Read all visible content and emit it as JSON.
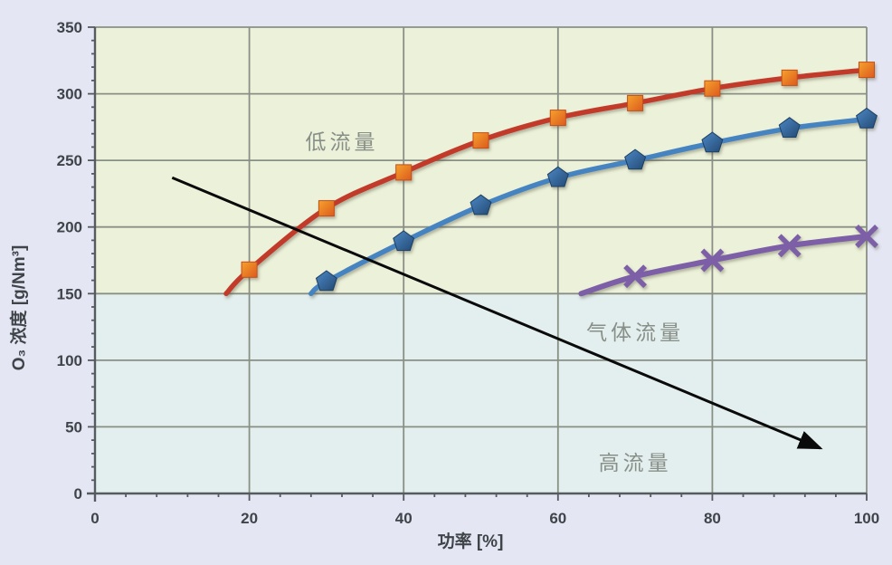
{
  "page": {
    "background_color": "#e4e7f3"
  },
  "chart_data": {
    "type": "line",
    "title": "",
    "xlabel": "功率 [%]",
    "ylabel": "O₃ 浓度 [g/Nm³]",
    "xlim": [
      0,
      100
    ],
    "ylim": [
      0,
      350
    ],
    "x_ticks": [
      0,
      20,
      40,
      60,
      80,
      100
    ],
    "y_ticks": [
      0,
      50,
      100,
      150,
      200,
      250,
      300,
      350
    ],
    "x_minor_step": 4,
    "y_minor_step": 10,
    "grid": true,
    "legend": "none",
    "colors": {
      "outer_background": "#e4e7f3",
      "gridline": "#8a8f85",
      "axis": "#555b5e",
      "tick_text": "#3f4449",
      "annotation_text": "#888f88",
      "arrow": "#0a0a0a"
    },
    "regions": [
      {
        "name": "low-flow-band",
        "y0": 150,
        "y1": 350,
        "color": "#ecf1d9"
      },
      {
        "name": "high-flow-band",
        "y0": 0,
        "y1": 150,
        "color": "#e3efee"
      }
    ],
    "series": [
      {
        "id": "red-squares",
        "marker": "square",
        "line_color": "#c23b2b",
        "line_width": 5.5,
        "marker_fill": [
          "#f6a22d",
          "#dc5a1e"
        ],
        "marker_stroke": "#c64e19",
        "marker_start_index": 1,
        "points": [
          [
            17,
            150
          ],
          [
            20,
            168
          ],
          [
            30,
            214
          ],
          [
            40,
            241
          ],
          [
            50,
            265
          ],
          [
            60,
            282
          ],
          [
            70,
            293
          ],
          [
            80,
            304
          ],
          [
            90,
            312
          ],
          [
            100,
            318
          ]
        ]
      },
      {
        "id": "blue-pentagons",
        "marker": "pentagon",
        "line_color": "#4583c1",
        "line_width": 5.5,
        "marker_fill": [
          "#4d88c6",
          "#234a74"
        ],
        "marker_stroke": "#1d3f63",
        "marker_start_index": 1,
        "points": [
          [
            28,
            150
          ],
          [
            30,
            159
          ],
          [
            40,
            189
          ],
          [
            50,
            216
          ],
          [
            60,
            237
          ],
          [
            70,
            250
          ],
          [
            80,
            263
          ],
          [
            90,
            274
          ],
          [
            100,
            281
          ]
        ]
      },
      {
        "id": "purple-x",
        "marker": "x",
        "line_color": "#7b5ea6",
        "line_width": 6,
        "marker_fill": [
          "#7b5ea6",
          "#7b5ea6"
        ],
        "marker_stroke": "#7b5ea6",
        "marker_start_index": 1,
        "points": [
          [
            63,
            150
          ],
          [
            70,
            163
          ],
          [
            80,
            175
          ],
          [
            90,
            186
          ],
          [
            100,
            193
          ]
        ]
      }
    ],
    "annotations": [
      {
        "id": "low-flow-label",
        "text": "低流量",
        "x": 32,
        "y": 264
      },
      {
        "id": "gas-flow-label",
        "text": "气体流量",
        "x": 70,
        "y": 121
      },
      {
        "id": "high-flow-label",
        "text": "高流量",
        "x": 70,
        "y": 23
      }
    ],
    "arrow": {
      "from": [
        10,
        237
      ],
      "to": [
        94,
        34
      ]
    }
  }
}
